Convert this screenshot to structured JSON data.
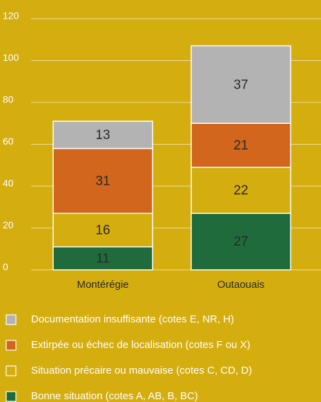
{
  "chart_data": {
    "type": "stacked_bar",
    "categories": [
      "Montérégie",
      "Outaouais"
    ],
    "series": [
      {
        "name": "Bonne situation (cotes A, AB, B, BC)",
        "color": "#1f6b3b",
        "values": [
          11,
          27
        ]
      },
      {
        "name": "Situation précaire ou mauvaise (cotes C, CD, D)",
        "color": "#d4ad0f",
        "values": [
          16,
          22
        ]
      },
      {
        "name": "Extirpée ou échec de localisation (cotes F ou X)",
        "color": "#d1661c",
        "values": [
          31,
          21
        ]
      },
      {
        "name": "Documentation insuffisante (cotes E, NR, H)",
        "color": "#b3b3b3",
        "values": [
          13,
          37
        ]
      }
    ],
    "ylim": [
      0,
      120
    ],
    "yticks": [
      0,
      20,
      40,
      60,
      80,
      100,
      120
    ],
    "grid": true
  }
}
